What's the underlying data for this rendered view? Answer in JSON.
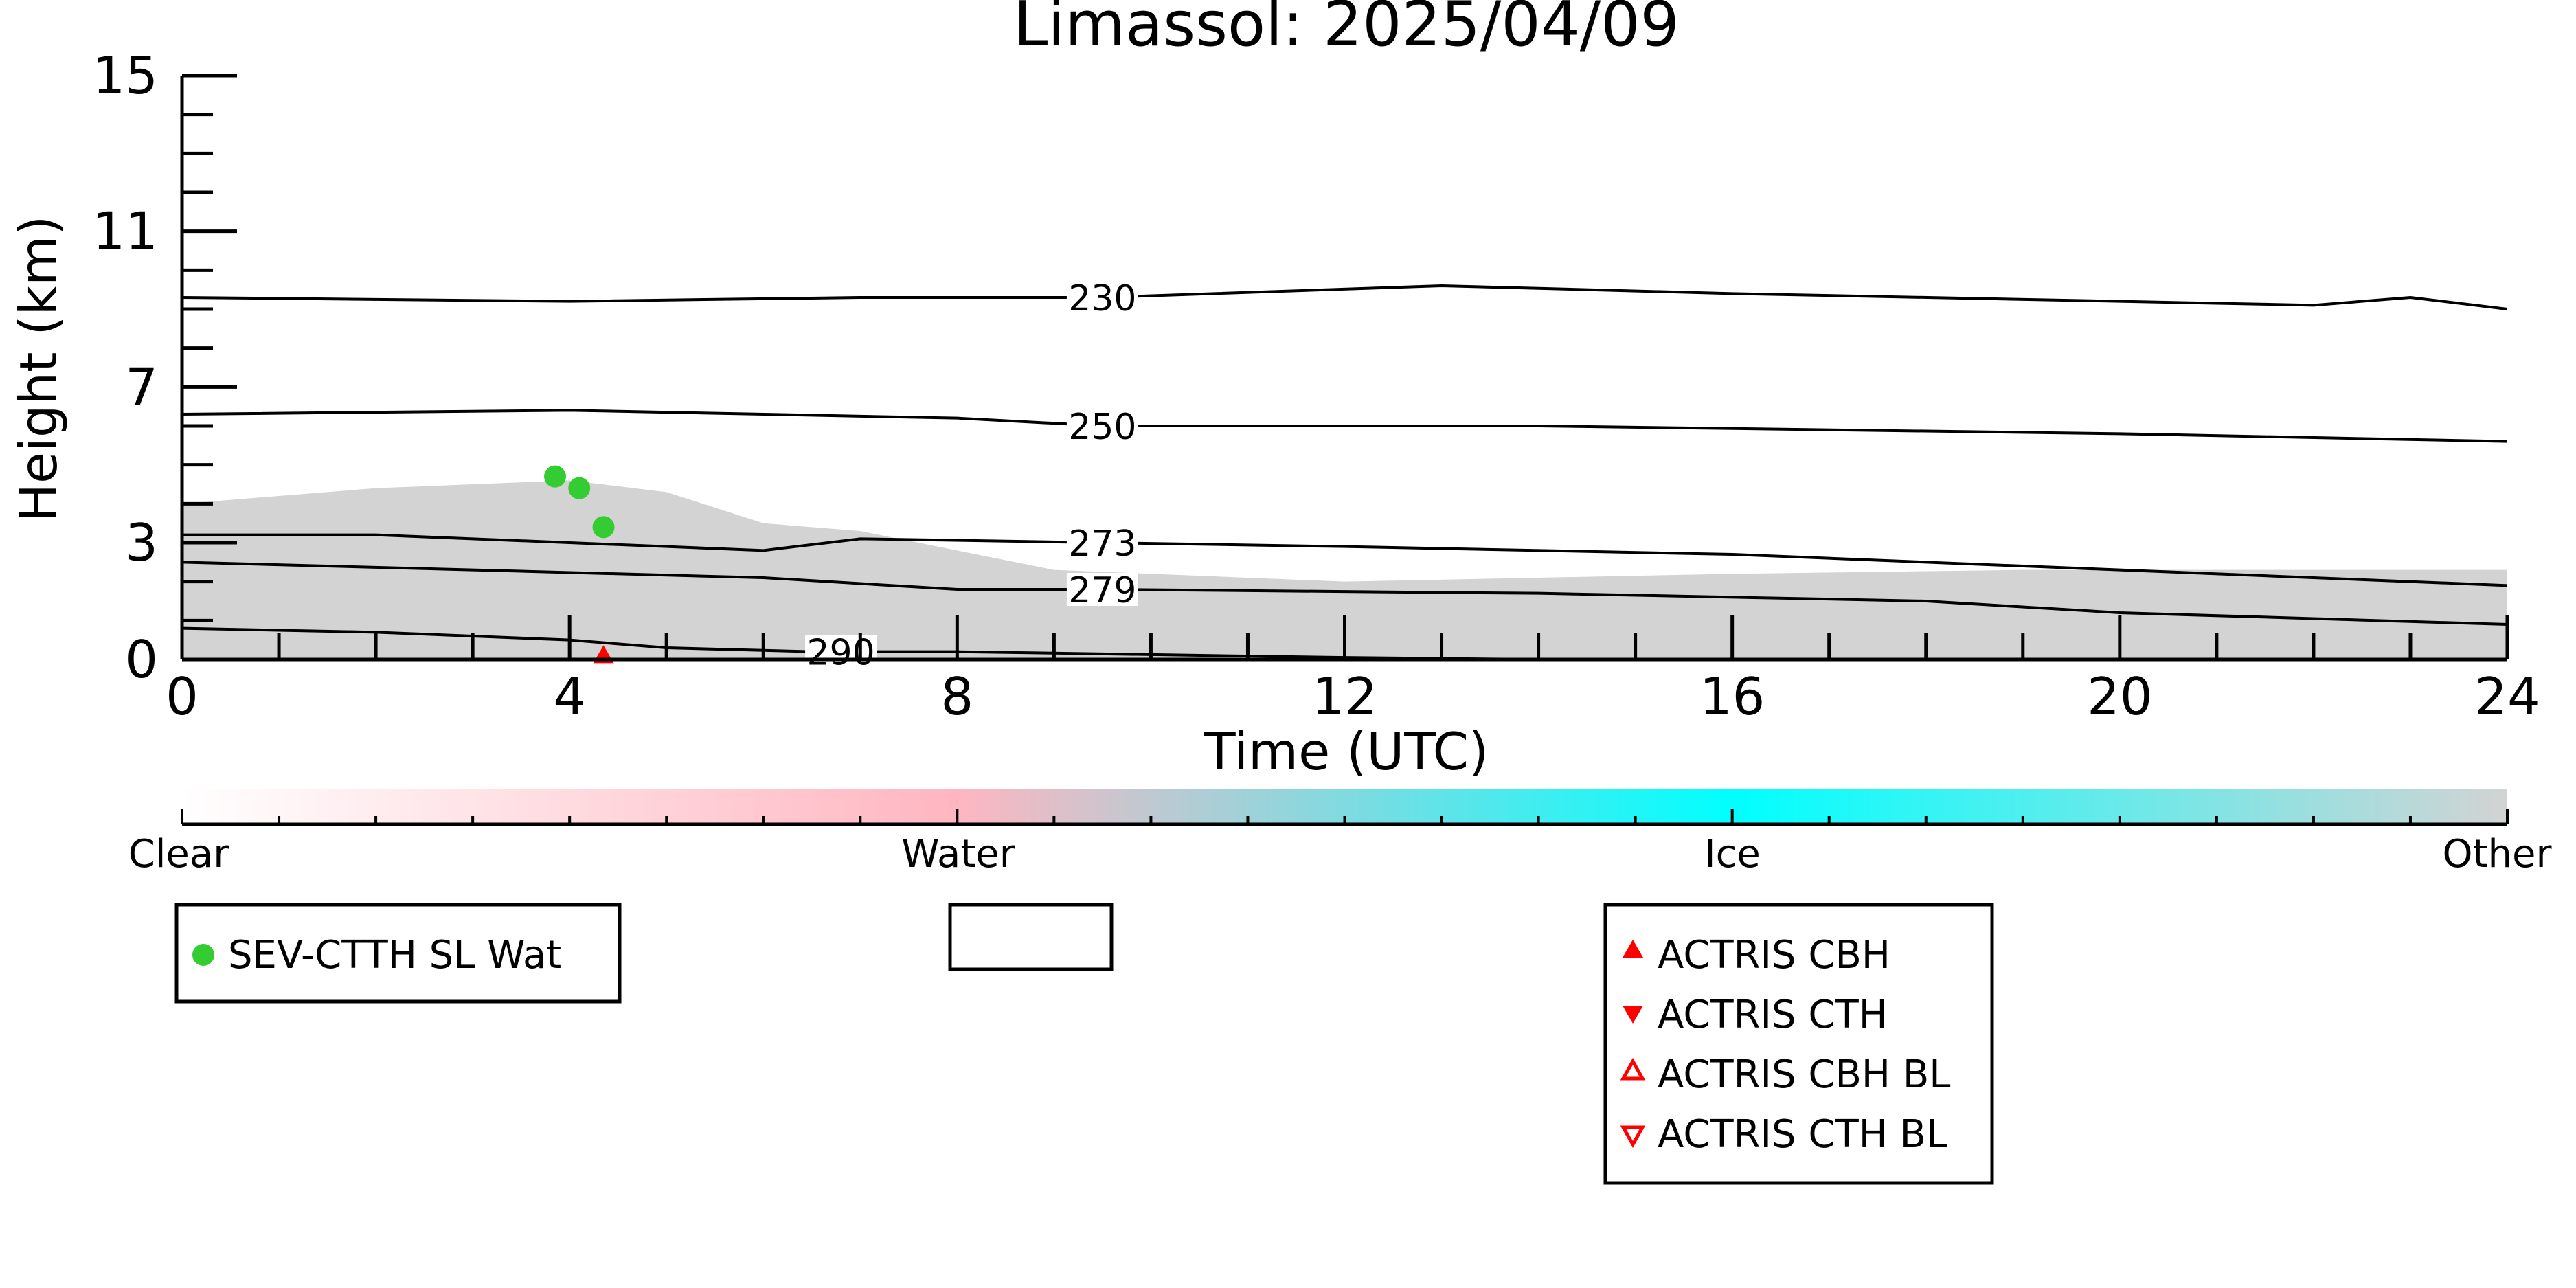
{
  "chart_data": {
    "type": "scatter",
    "title": "Limassol: 2025/04/09",
    "xlabel": "Time (UTC)",
    "ylabel": "Height (km)",
    "xlim": [
      0,
      24
    ],
    "ylim": [
      0,
      15
    ],
    "x_ticks": [
      "0",
      "4",
      "8",
      "12",
      "16",
      "20",
      "24"
    ],
    "y_ticks": [
      "0",
      "3",
      "7",
      "11",
      "15"
    ],
    "contours": [
      {
        "label": "230",
        "points": [
          [
            0,
            9.3
          ],
          [
            4,
            9.2
          ],
          [
            7,
            9.3
          ],
          [
            9.5,
            9.3
          ],
          [
            13,
            9.6
          ],
          [
            16,
            9.4
          ],
          [
            20,
            9.2
          ],
          [
            22,
            9.1
          ],
          [
            23,
            9.3
          ],
          [
            24,
            9.0
          ]
        ]
      },
      {
        "label": "250",
        "points": [
          [
            0,
            6.3
          ],
          [
            4,
            6.4
          ],
          [
            8,
            6.2
          ],
          [
            9.5,
            6.0
          ],
          [
            14,
            6.0
          ],
          [
            20,
            5.8
          ],
          [
            24,
            5.6
          ]
        ]
      },
      {
        "label": "273",
        "points": [
          [
            0,
            3.2
          ],
          [
            2,
            3.2
          ],
          [
            4,
            3.0
          ],
          [
            6,
            2.8
          ],
          [
            7,
            3.1
          ],
          [
            9.5,
            3.0
          ],
          [
            12,
            2.9
          ],
          [
            16,
            2.7
          ],
          [
            20,
            2.3
          ],
          [
            24,
            1.9
          ]
        ]
      },
      {
        "label": "279",
        "points": [
          [
            0,
            2.5
          ],
          [
            3,
            2.3
          ],
          [
            6,
            2.1
          ],
          [
            8,
            1.8
          ],
          [
            9.5,
            1.8
          ],
          [
            14,
            1.7
          ],
          [
            18,
            1.5
          ],
          [
            20,
            1.2
          ],
          [
            24,
            0.9
          ]
        ]
      },
      {
        "label": "290",
        "points": [
          [
            0,
            0.8
          ],
          [
            2,
            0.7
          ],
          [
            4,
            0.5
          ],
          [
            5,
            0.3
          ],
          [
            6.5,
            0.2
          ],
          [
            8,
            0.2
          ],
          [
            12,
            0.05
          ],
          [
            14,
            0.0
          ]
        ]
      }
    ],
    "series": [
      {
        "name": "SEV-CTTH SL Wat",
        "color": "#33cc33",
        "marker": "circle",
        "points": [
          [
            3.85,
            4.7
          ],
          [
            4.1,
            4.4
          ],
          [
            4.35,
            3.4
          ]
        ]
      },
      {
        "name": "ACTRIS CBH",
        "color": "#ff0000",
        "marker": "triangle-up-filled",
        "points": [
          [
            4.35,
            0.1
          ]
        ]
      },
      {
        "name": "ACTRIS CTH",
        "color": "#ff0000",
        "marker": "triangle-down-filled",
        "points": []
      },
      {
        "name": "ACTRIS CBH BL",
        "color": "#ff0000",
        "marker": "triangle-up-open",
        "points": []
      },
      {
        "name": "ACTRIS CTH BL",
        "color": "#ff0000",
        "marker": "triangle-down-open",
        "points": []
      }
    ],
    "backscatter_top": [
      [
        0,
        4.0
      ],
      [
        2,
        4.4
      ],
      [
        4,
        4.6
      ],
      [
        5,
        4.3
      ],
      [
        6,
        3.5
      ],
      [
        7,
        3.3
      ],
      [
        9,
        2.3
      ],
      [
        12,
        2.0
      ],
      [
        16,
        2.2
      ],
      [
        19,
        2.3
      ],
      [
        24,
        2.3
      ]
    ],
    "colorbar": {
      "labels": [
        "Clear",
        "Water",
        "Ice",
        "Other"
      ],
      "colors": [
        "#ffffff",
        "#ffb6c1",
        "#00ffff",
        "#d3d3d3"
      ]
    },
    "legend_middle_box": "",
    "grid": false
  }
}
